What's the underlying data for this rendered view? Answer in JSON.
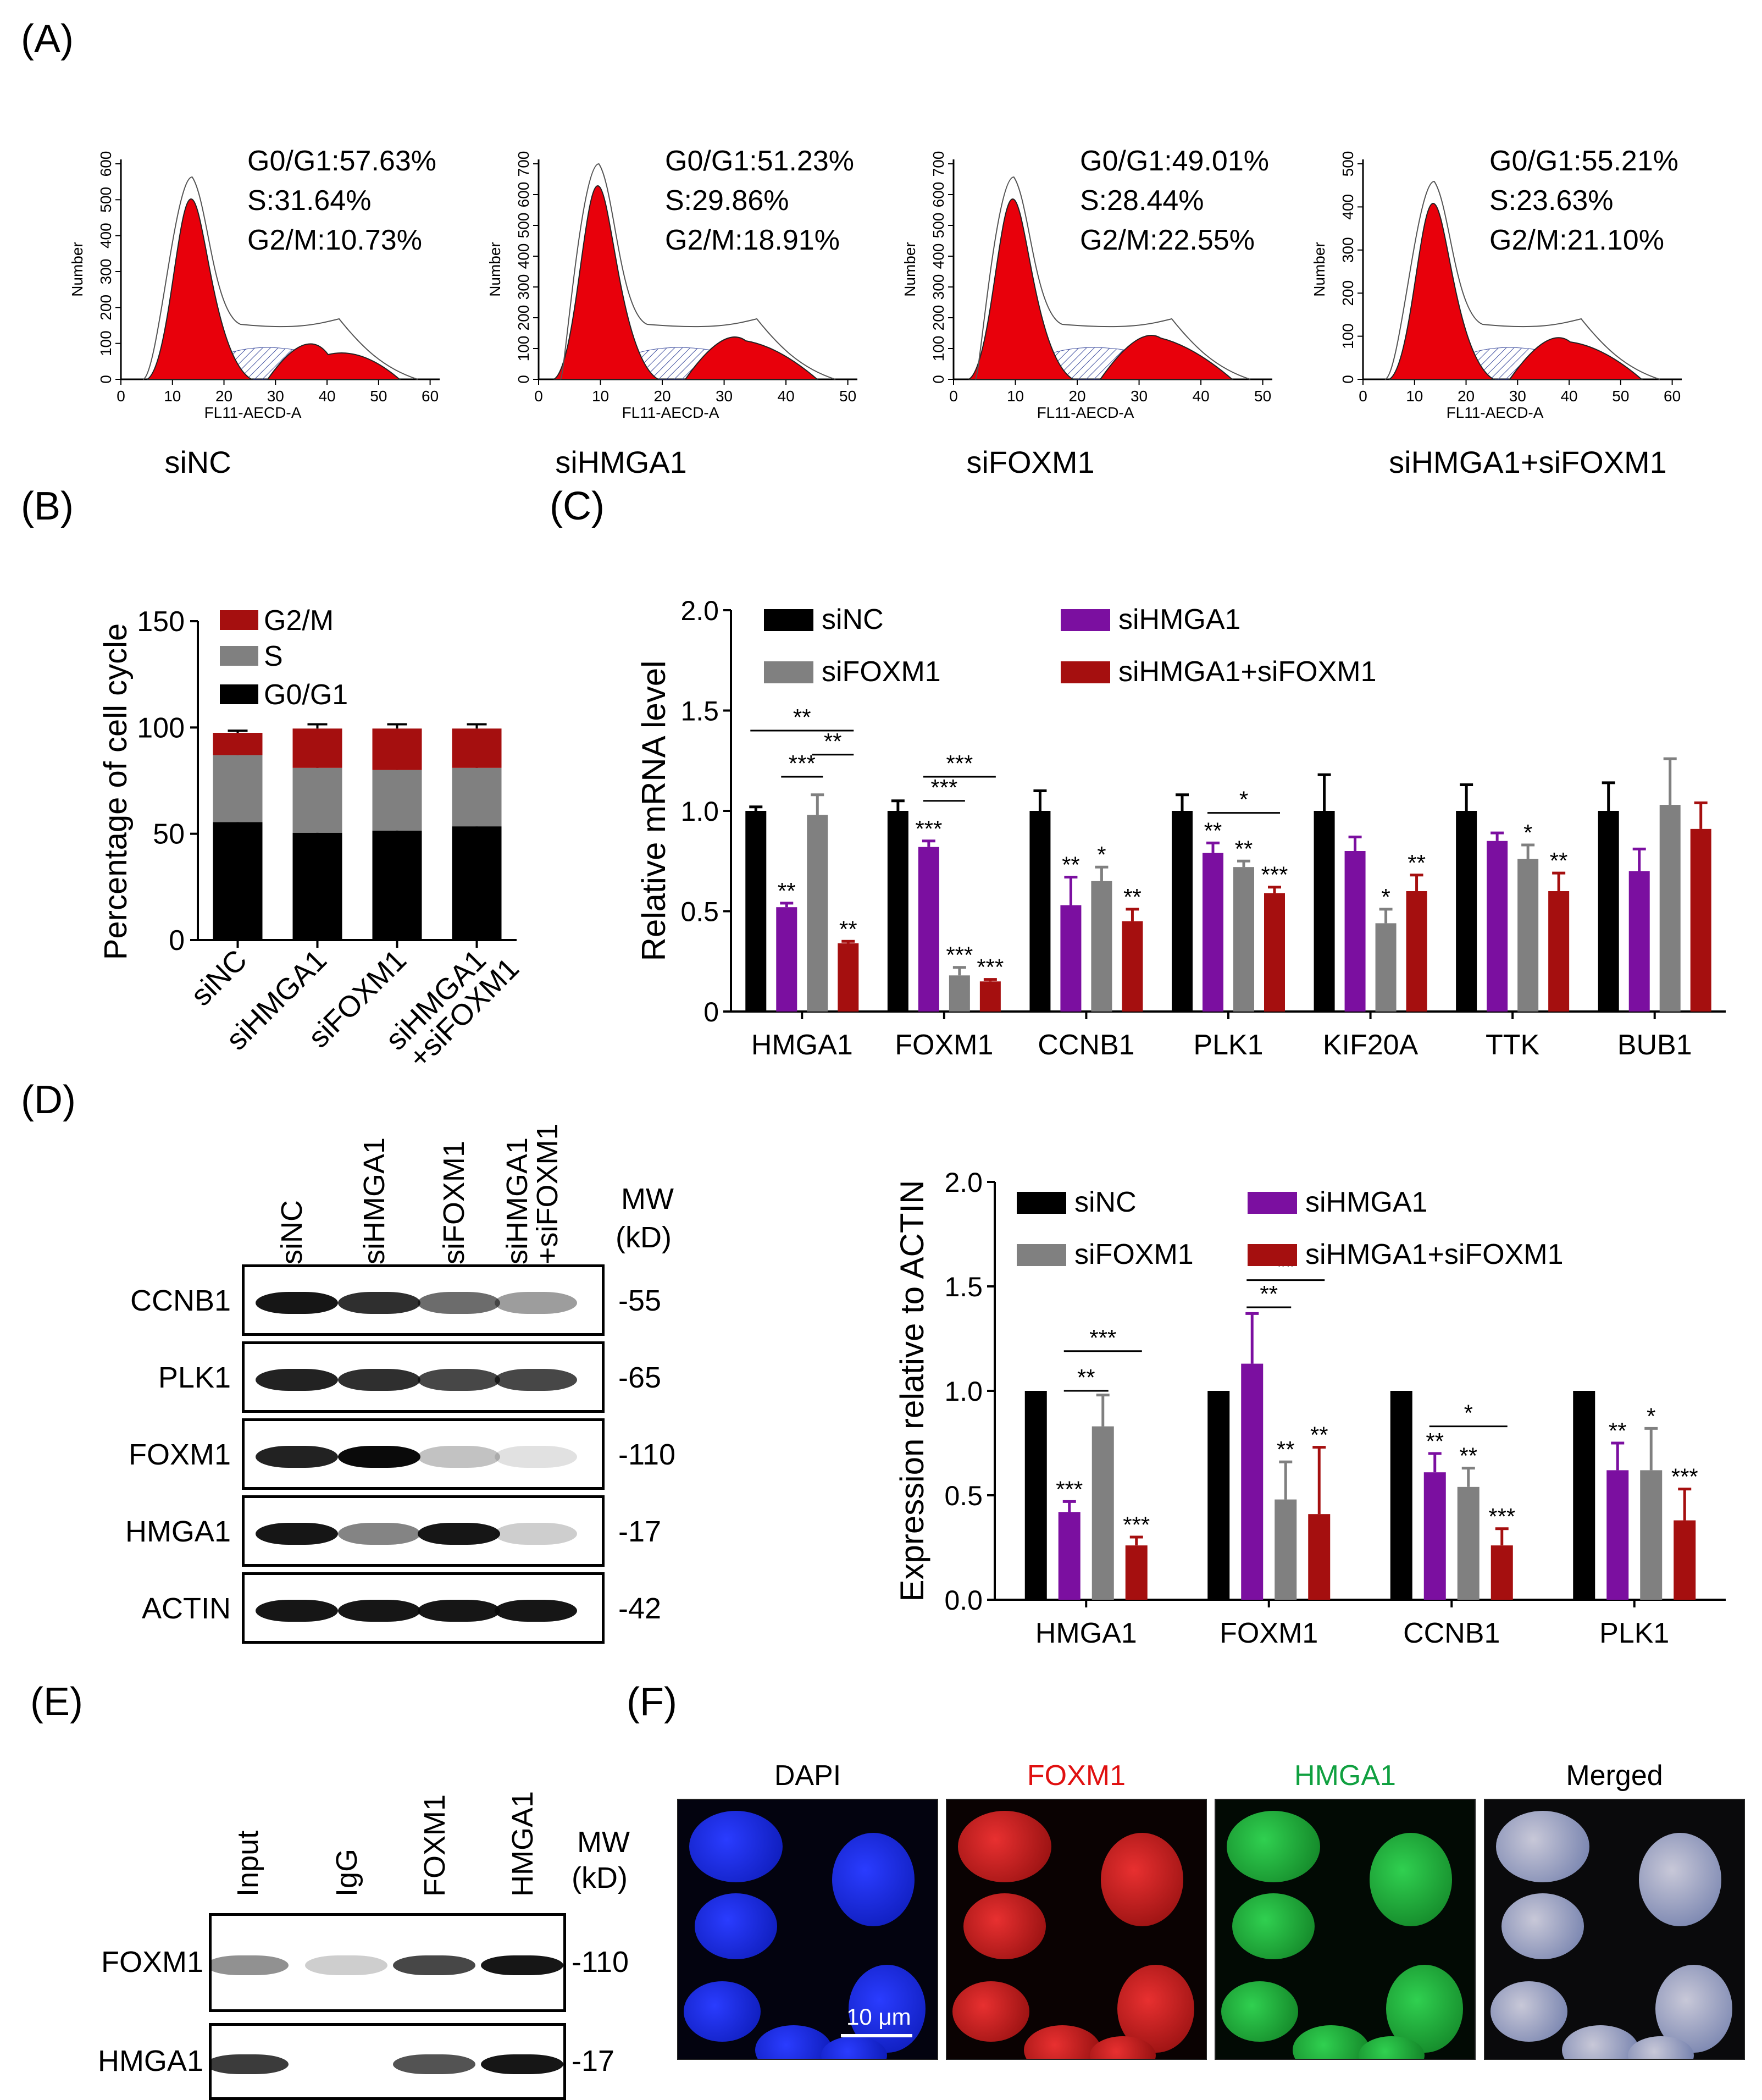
{
  "panel_labels": {
    "A": "(A)",
    "B": "(B)",
    "C": "(C)",
    "D": "(D)",
    "E": "(E)",
    "F": "(F)"
  },
  "flow": {
    "ylabel": "Number",
    "xlabel": "FL11-AECD-A",
    "panels": [
      {
        "group": "siNC",
        "g0g1": "G0/G1:57.63%",
        "s": "S:31.64%",
        "g2m": "G2/M:10.73%",
        "xticks": [
          "0",
          "10",
          "20",
          "30",
          "40",
          "50",
          "60"
        ],
        "yticks": [
          "0",
          "100",
          "200",
          "300",
          "400",
          "500",
          "600"
        ]
      },
      {
        "group": "siHMGA1",
        "g0g1": "G0/G1:51.23%",
        "s": "S:29.86%",
        "g2m": "G2/M:18.91%",
        "xticks": [
          "0",
          "10",
          "20",
          "30",
          "40",
          "50"
        ],
        "yticks": [
          "0",
          "100",
          "200",
          "300",
          "400",
          "500",
          "600",
          "700"
        ]
      },
      {
        "group": "siFOXM1",
        "g0g1": "G0/G1:49.01%",
        "s": "S:28.44%",
        "g2m": "G2/M:22.55%",
        "xticks": [
          "0",
          "10",
          "20",
          "30",
          "40",
          "50"
        ],
        "yticks": [
          "0",
          "100",
          "200",
          "300",
          "400",
          "500",
          "600",
          "700"
        ]
      },
      {
        "group": "siHMGA1+siFOXM1",
        "g0g1": "G0/G1:55.21%",
        "s": "S:23.63%",
        "g2m": "G2/M:21.10%",
        "xticks": [
          "0",
          "10",
          "20",
          "30",
          "40",
          "50",
          "60"
        ],
        "yticks": [
          "0",
          "100",
          "200",
          "300",
          "400",
          "500"
        ]
      }
    ]
  },
  "chart_data": [
    {
      "type": "bar",
      "stacked": true,
      "ylabel": "Percentage of cell cycle",
      "ylim": [
        0,
        150
      ],
      "yticks": [
        "0",
        "50",
        "100",
        "150"
      ],
      "categories": [
        "siNC",
        "siHMGA1",
        "siFOXM1",
        "siHMGA1\n+siFOXM1"
      ],
      "category_lines": [
        [
          "siNC"
        ],
        [
          "siHMGA1"
        ],
        [
          "siFOXM1"
        ],
        [
          "siHMGA1",
          "+siFOXM1"
        ]
      ],
      "series": [
        {
          "name": "G0/G1",
          "color": "#000000",
          "values": [
            55.5,
            50.5,
            51.5,
            53.5
          ],
          "err": [
            3,
            1.5,
            2,
            2
          ]
        },
        {
          "name": "S",
          "color": "#808080",
          "values": [
            31.5,
            30.5,
            28.5,
            27.5
          ],
          "err": [
            1.5,
            2,
            1.5,
            2
          ]
        },
        {
          "name": "G2/M",
          "color": "#a50f0f",
          "values": [
            10.5,
            18.5,
            19.5,
            18.5
          ],
          "err": [
            1,
            2,
            2,
            2
          ]
        }
      ],
      "legend_order": [
        "G2/M",
        "S",
        "G0/G1"
      ]
    },
    {
      "type": "bar",
      "ylabel": "Relative  mRNA level",
      "ylim": [
        0,
        2.0
      ],
      "yticks": [
        "0",
        "0.5",
        "1.0",
        "1.5",
        "2.0"
      ],
      "categories": [
        "HMGA1",
        "FOXM1",
        "CCNB1",
        "PLK1",
        "KIF20A",
        "TTK",
        "BUB1"
      ],
      "series": [
        {
          "name": "siNC",
          "color": "#000000",
          "values": [
            1.0,
            1.0,
            1.0,
            1.0,
            1.0,
            1.0,
            1.0
          ],
          "err": [
            0.02,
            0.05,
            0.1,
            0.08,
            0.18,
            0.13,
            0.14
          ],
          "stars": [
            "",
            "",
            "",
            "",
            "",
            "",
            ""
          ]
        },
        {
          "name": "siHMGA1",
          "color": "#7b0fa0",
          "values": [
            0.52,
            0.82,
            0.53,
            0.79,
            0.8,
            0.85,
            0.7
          ],
          "err": [
            0.02,
            0.03,
            0.14,
            0.05,
            0.07,
            0.04,
            0.11
          ],
          "stars": [
            "**",
            "***",
            "**",
            "**",
            "",
            "",
            ""
          ]
        },
        {
          "name": "siFOXM1",
          "color": "#808080",
          "values": [
            0.98,
            0.18,
            0.65,
            0.72,
            0.44,
            0.76,
            1.03
          ],
          "err": [
            0.1,
            0.04,
            0.07,
            0.03,
            0.07,
            0.07,
            0.23
          ],
          "stars": [
            "",
            "***",
            "*",
            "**",
            "*",
            "*",
            ""
          ]
        },
        {
          "name": "siHMGA1+siFOXM1",
          "color": "#a50f0f",
          "values": [
            0.34,
            0.15,
            0.45,
            0.59,
            0.6,
            0.6,
            0.91
          ],
          "err": [
            0.01,
            0.01,
            0.06,
            0.03,
            0.08,
            0.09,
            0.13
          ],
          "stars": [
            "**",
            "***",
            "**",
            "***",
            "**",
            "**",
            ""
          ]
        }
      ],
      "brackets": [
        {
          "group": 0,
          "from": 0,
          "to": 3,
          "y": 1.4,
          "label": "**"
        },
        {
          "group": 0,
          "from": 2,
          "to": 3,
          "y": 1.28,
          "label": "**"
        },
        {
          "group": 0,
          "from": 1,
          "to": 2,
          "y": 1.17,
          "label": "***"
        },
        {
          "group": 1,
          "from": 1,
          "to": 3,
          "y": 1.17,
          "label": "***"
        },
        {
          "group": 1,
          "from": 1,
          "to": 2,
          "y": 1.05,
          "label": "***"
        },
        {
          "group": 3,
          "from": 1,
          "to": 3,
          "y": 0.99,
          "label": "*"
        }
      ]
    },
    {
      "type": "bar",
      "ylabel": "Expression relative to ACTIN",
      "ylim": [
        0,
        2.0
      ],
      "yticks": [
        "0.0",
        "0.5",
        "1.0",
        "1.5",
        "2.0"
      ],
      "categories": [
        "HMGA1",
        "FOXM1",
        "CCNB1",
        "PLK1"
      ],
      "series": [
        {
          "name": "siNC",
          "color": "#000000",
          "values": [
            1.0,
            1.0,
            1.0,
            1.0
          ],
          "err": [
            0,
            0,
            0,
            0
          ],
          "stars": [
            "",
            "",
            "",
            ""
          ]
        },
        {
          "name": "siHMGA1",
          "color": "#7b0fa0",
          "values": [
            0.42,
            1.13,
            0.61,
            0.62
          ],
          "err": [
            0.05,
            0.24,
            0.09,
            0.13
          ],
          "stars": [
            "***",
            "",
            "**",
            "**"
          ]
        },
        {
          "name": "siFOXM1",
          "color": "#808080",
          "values": [
            0.83,
            0.48,
            0.54,
            0.62
          ],
          "err": [
            0.15,
            0.18,
            0.09,
            0.2
          ],
          "stars": [
            "",
            "**",
            "**",
            "*"
          ]
        },
        {
          "name": "siHMGA1+siFOXM1",
          "color": "#a50f0f",
          "values": [
            0.26,
            0.41,
            0.26,
            0.38
          ],
          "err": [
            0.04,
            0.32,
            0.08,
            0.15
          ],
          "stars": [
            "***",
            "**",
            "***",
            "***"
          ]
        }
      ],
      "brackets": [
        {
          "group": 0,
          "from": 1,
          "to": 3,
          "y": 1.19,
          "label": "***"
        },
        {
          "group": 0,
          "from": 1,
          "to": 2,
          "y": 1.0,
          "label": "**"
        },
        {
          "group": 1,
          "from": 1,
          "to": 3,
          "y": 1.53,
          "label": "**"
        },
        {
          "group": 1,
          "from": 1,
          "to": 2,
          "y": 1.4,
          "label": "**"
        },
        {
          "group": 2,
          "from": 1,
          "to": 3,
          "y": 0.83,
          "label": "*"
        }
      ]
    }
  ],
  "western": {
    "lanes": [
      "siNC",
      "siHMGA1",
      "siFOXM1",
      "siHMGA1\n+siFOXM1"
    ],
    "mw_header": "MW\n(kD)",
    "rows": [
      {
        "name": "CCNB1",
        "mw": "-55"
      },
      {
        "name": "PLK1",
        "mw": "-65"
      },
      {
        "name": "FOXM1",
        "mw": "-110"
      },
      {
        "name": "HMGA1",
        "mw": "-17"
      },
      {
        "name": "ACTIN",
        "mw": "-42"
      }
    ]
  },
  "coip": {
    "lanes": [
      "Input",
      "IgG",
      "FOXM1",
      "HMGA1"
    ],
    "mw_header": "MW\n(kD)",
    "rows": [
      {
        "name": "FOXM1",
        "mw": "-110"
      },
      {
        "name": "HMGA1",
        "mw": "-17"
      }
    ]
  },
  "if": {
    "channels": [
      {
        "name": "DAPI",
        "color": "#000000"
      },
      {
        "name": "FOXM1",
        "color": "#e01010"
      },
      {
        "name": "HMGA1",
        "color": "#10a040"
      },
      {
        "name": "Merged",
        "color": "#000000"
      }
    ],
    "scale_bar": "10 μm"
  }
}
